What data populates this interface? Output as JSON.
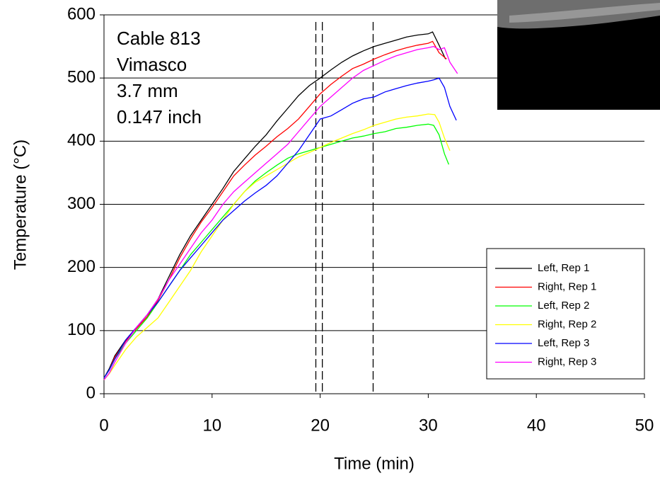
{
  "chart_data": {
    "type": "line",
    "x_label": "Time (min)",
    "y_label": "Temperature (°C)",
    "annotations": [
      "Cable 813",
      "Vimasco",
      "3.7 mm",
      "0.147 inch"
    ],
    "xlim": [
      0,
      50
    ],
    "xticks": [
      0,
      10,
      20,
      30,
      40,
      50
    ],
    "ylim": [
      0,
      600
    ],
    "yticks": [
      0,
      100,
      200,
      300,
      400,
      500,
      600
    ],
    "grid": true,
    "legend": "lower right",
    "vlines": [
      19.6,
      20.2,
      24.9
    ],
    "series": [
      {
        "name": "Left, Rep 1",
        "color": "#000000",
        "x": [
          0,
          0.5,
          1,
          2,
          3,
          4,
          5,
          6,
          7,
          8,
          9,
          10,
          11,
          12,
          13,
          14,
          15,
          16,
          17,
          18,
          19,
          20,
          21,
          22,
          23,
          24,
          25,
          26,
          27,
          28,
          29,
          30,
          30.4,
          31,
          31.6
        ],
        "values": [
          25,
          40,
          60,
          85,
          105,
          125,
          150,
          185,
          220,
          250,
          275,
          300,
          325,
          352,
          372,
          392,
          410,
          432,
          452,
          472,
          488,
          500,
          513,
          525,
          535,
          543,
          550,
          555,
          560,
          565,
          568,
          570,
          573,
          552,
          530
        ]
      },
      {
        "name": "Right, Rep 1",
        "color": "#ff0000",
        "x": [
          0,
          0.5,
          1,
          2,
          3,
          4,
          5,
          6,
          7,
          8,
          9,
          10,
          11,
          12,
          13,
          14,
          15,
          16,
          17,
          18,
          19,
          20,
          21,
          22,
          23,
          24,
          25,
          26,
          27,
          28,
          29,
          30,
          30.4,
          31,
          31.7
        ],
        "values": [
          25,
          38,
          58,
          83,
          103,
          122,
          148,
          180,
          215,
          245,
          272,
          295,
          320,
          345,
          362,
          378,
          392,
          407,
          420,
          435,
          455,
          475,
          490,
          503,
          515,
          522,
          530,
          537,
          543,
          548,
          552,
          555,
          558,
          540,
          530
        ]
      },
      {
        "name": "Left, Rep 2",
        "color": "#00ff00",
        "x": [
          0,
          0.5,
          1,
          2,
          3,
          4,
          5,
          6,
          7,
          8,
          9,
          10,
          11,
          12,
          13,
          14,
          15,
          16,
          17,
          18,
          19,
          20,
          21,
          22,
          23,
          24,
          25,
          26,
          27,
          28,
          29,
          30,
          30.5,
          31,
          31.5,
          31.9
        ],
        "values": [
          25,
          38,
          55,
          80,
          100,
          120,
          145,
          170,
          195,
          220,
          240,
          260,
          280,
          300,
          320,
          337,
          350,
          362,
          373,
          380,
          385,
          390,
          395,
          400,
          405,
          408,
          412,
          415,
          420,
          422,
          425,
          427,
          425,
          410,
          380,
          363
        ]
      },
      {
        "name": "Right, Rep 2",
        "color": "#ffff00",
        "x": [
          0,
          0.5,
          1,
          2,
          3,
          4,
          5,
          6,
          7,
          8,
          9,
          10,
          11,
          12,
          13,
          14,
          15,
          16,
          17,
          18,
          19,
          20,
          21,
          22,
          23,
          24,
          25,
          26,
          27,
          28,
          29,
          30,
          30.6,
          31,
          31.5,
          32
        ],
        "values": [
          22,
          32,
          45,
          70,
          90,
          105,
          120,
          145,
          170,
          195,
          225,
          250,
          275,
          300,
          320,
          335,
          345,
          355,
          365,
          375,
          382,
          390,
          398,
          405,
          412,
          418,
          425,
          430,
          435,
          438,
          440,
          443,
          442,
          430,
          405,
          385
        ]
      },
      {
        "name": "Left, Rep 3",
        "color": "#0000ff",
        "x": [
          0,
          0.5,
          1,
          2,
          3,
          4,
          5,
          6,
          7,
          8,
          9,
          10,
          11,
          12,
          13,
          14,
          15,
          16,
          17,
          18,
          19,
          20,
          21,
          22,
          23,
          24,
          25,
          26,
          27,
          28,
          29,
          30,
          30.5,
          31,
          31.5,
          32,
          32.6
        ],
        "values": [
          25,
          38,
          55,
          85,
          105,
          125,
          145,
          170,
          195,
          215,
          235,
          255,
          275,
          290,
          305,
          318,
          330,
          345,
          365,
          385,
          410,
          435,
          440,
          450,
          460,
          467,
          470,
          478,
          483,
          488,
          492,
          495,
          497,
          500,
          485,
          455,
          433
        ]
      },
      {
        "name": "Right, Rep 3",
        "color": "#ff00ff",
        "x": [
          0,
          0.5,
          1,
          2,
          3,
          4,
          5,
          6,
          7,
          8,
          9,
          10,
          11,
          12,
          13,
          14,
          15,
          16,
          17,
          18,
          19,
          20,
          21,
          22,
          23,
          24,
          25,
          26,
          27,
          28,
          29,
          30,
          30.5,
          31,
          31.5,
          32,
          32.7
        ],
        "values": [
          22,
          33,
          50,
          80,
          105,
          125,
          150,
          180,
          205,
          230,
          255,
          275,
          300,
          320,
          335,
          350,
          365,
          380,
          395,
          415,
          435,
          455,
          470,
          485,
          500,
          512,
          520,
          528,
          535,
          540,
          545,
          548,
          550,
          545,
          548,
          525,
          507
        ]
      }
    ]
  }
}
